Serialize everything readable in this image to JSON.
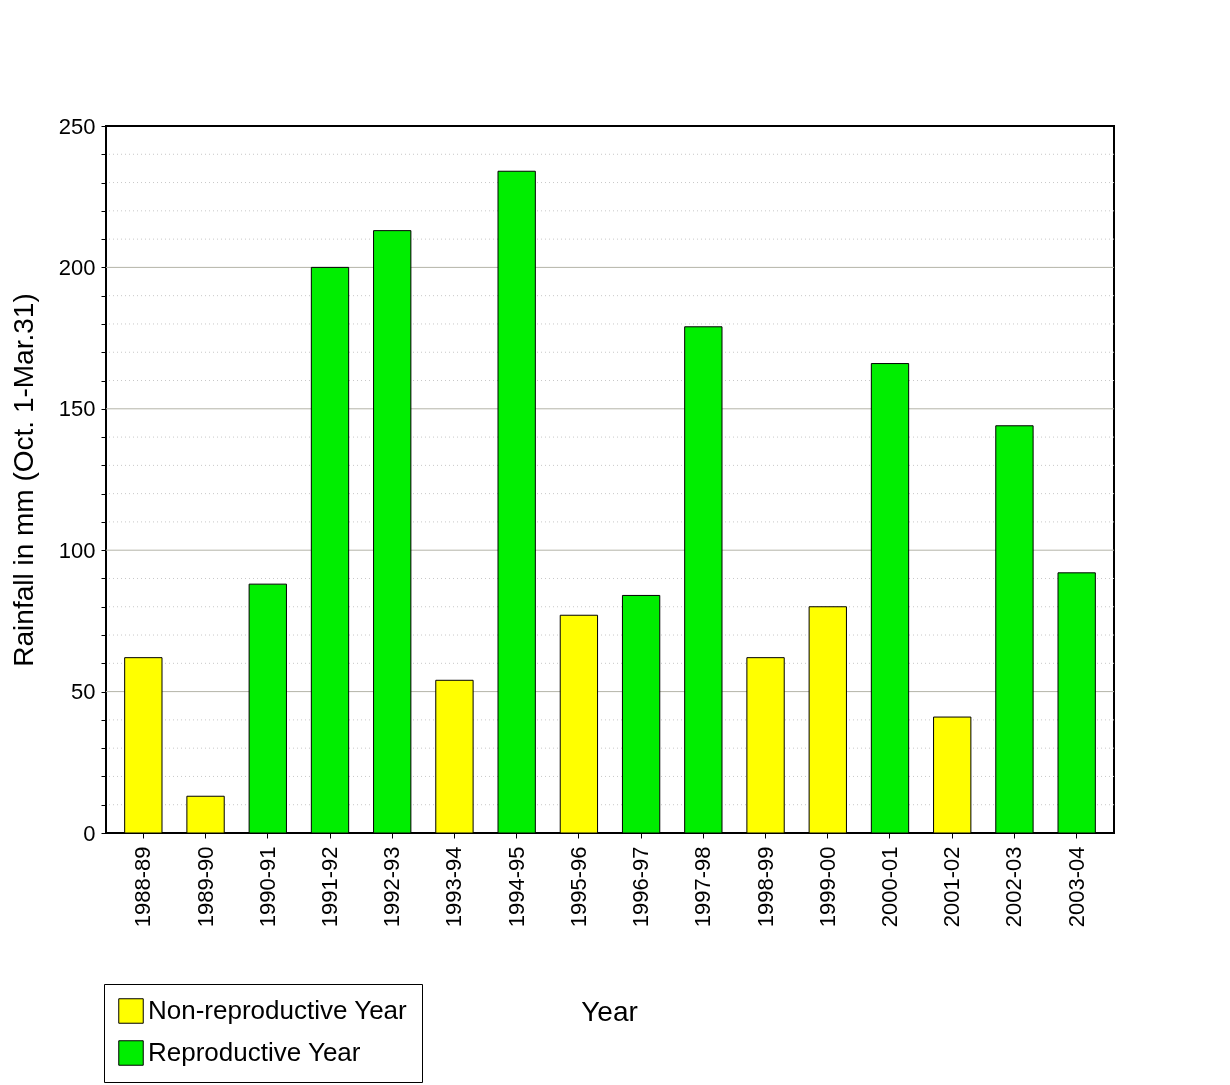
{
  "chart_data": {
    "type": "bar",
    "xlabel": "Year",
    "ylabel": "Rainfall in mm (Oct. 1-Mar.31)",
    "categories": [
      "1988-89",
      "1989-90",
      "1990-91",
      "1991-92",
      "1992-93",
      "1993-94",
      "1994-95",
      "1995-96",
      "1996-97",
      "1997-98",
      "1998-99",
      "1999-00",
      "2000-01",
      "2001-02",
      "2002-03",
      "2003-04"
    ],
    "series": [
      {
        "name": "Non-reproductive Year",
        "color": "#ffff00",
        "values": [
          62,
          13,
          null,
          null,
          null,
          54,
          null,
          77,
          null,
          null,
          62,
          80,
          null,
          41,
          null,
          null
        ]
      },
      {
        "name": "Reproductive Year",
        "color": "#00ee00",
        "values": [
          null,
          null,
          88,
          200,
          213,
          null,
          234,
          null,
          84,
          179,
          null,
          null,
          166,
          null,
          144,
          92
        ]
      }
    ],
    "ylim": [
      0,
      250
    ],
    "yticks": [
      0,
      {
        "value": 10,
        "label": null
      },
      {
        "value": 20,
        "label": null
      },
      {
        "value": 30,
        "label": null
      },
      {
        "value": 40,
        "label": null
      },
      50,
      {
        "value": 60,
        "label": null
      },
      {
        "value": 70,
        "label": null
      },
      {
        "value": 80,
        "label": null
      },
      {
        "value": 90,
        "label": null
      },
      100,
      {
        "value": 110,
        "label": null
      },
      {
        "value": 120,
        "label": null
      },
      {
        "value": 130,
        "label": null
      },
      {
        "value": 140,
        "label": null
      },
      150,
      {
        "value": 160,
        "label": null
      },
      {
        "value": 170,
        "label": null
      },
      {
        "value": 180,
        "label": null
      },
      {
        "value": 190,
        "label": null
      },
      200,
      {
        "value": 210,
        "label": null
      },
      {
        "value": 220,
        "label": null
      },
      {
        "value": 230,
        "label": null
      },
      {
        "value": 240,
        "label": null
      },
      250
    ],
    "grid": "y",
    "legend": "bottom left"
  }
}
